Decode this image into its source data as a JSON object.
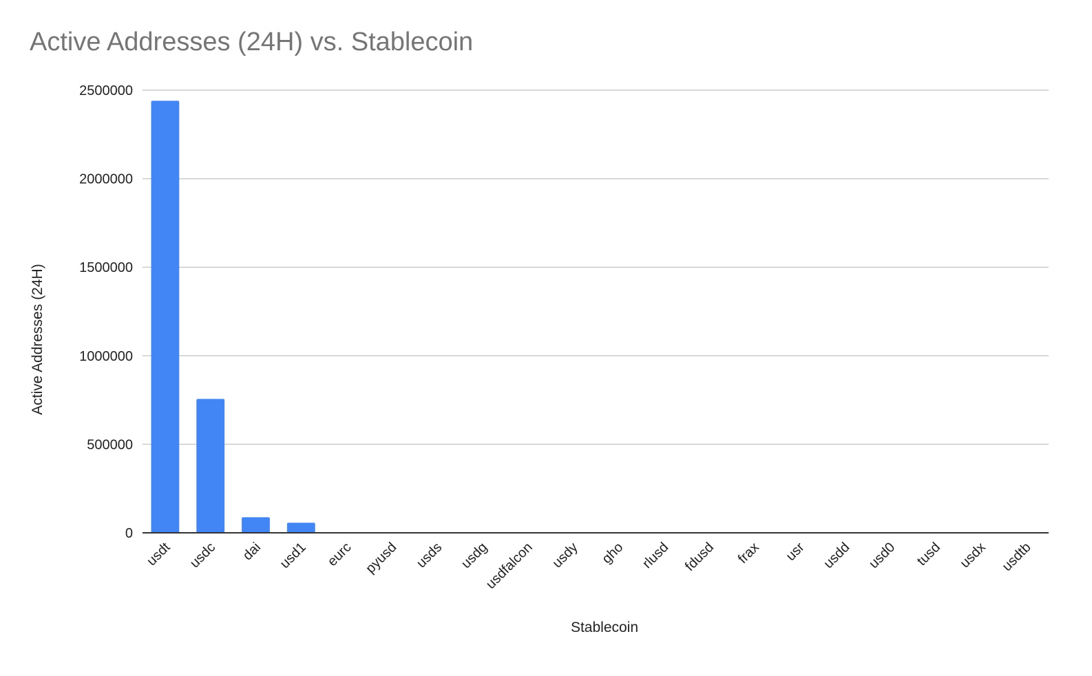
{
  "chart_data": {
    "type": "bar",
    "title": "Active Addresses (24H) vs. Stablecoin",
    "xlabel": "Stablecoin",
    "ylabel": "Active Addresses (24H)",
    "ylim": [
      0,
      2500000
    ],
    "yticks": [
      0,
      500000,
      1000000,
      1500000,
      2000000,
      2500000
    ],
    "ytick_labels": [
      "0",
      "500000",
      "1000000",
      "1500000",
      "2000000",
      "2500000"
    ],
    "grid": true,
    "legend": "none",
    "bar_color": "#4285f4",
    "categories": [
      "usdt",
      "usdc",
      "dai",
      "usd1",
      "eurc",
      "pyusd",
      "usds",
      "usdg",
      "usdfalcon",
      "usdy",
      "gho",
      "rlusd",
      "fdusd",
      "frax",
      "usr",
      "usdd",
      "usd0",
      "tusd",
      "usdx",
      "usdtb"
    ],
    "values": [
      2440000,
      756000,
      88000,
      57000,
      4000,
      3000,
      2500,
      500,
      300,
      300,
      300,
      300,
      300,
      200,
      200,
      200,
      200,
      150,
      150,
      100
    ]
  }
}
